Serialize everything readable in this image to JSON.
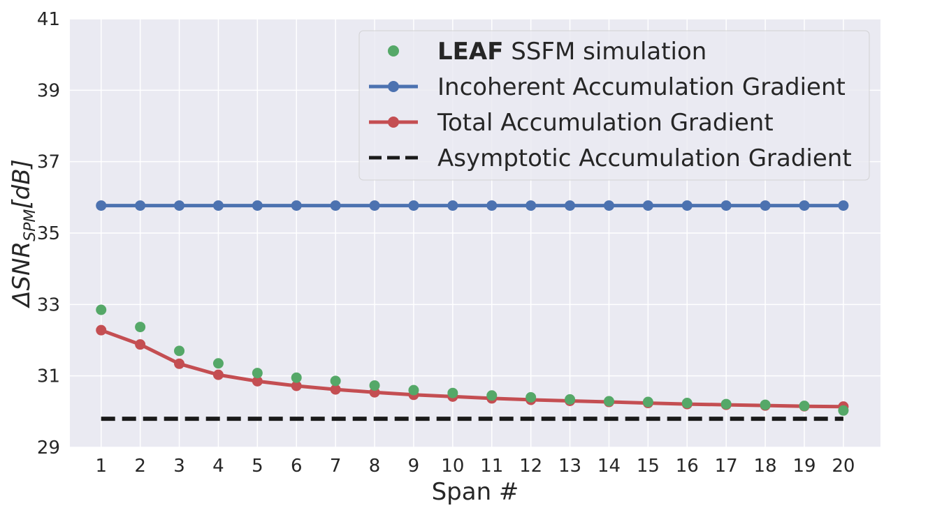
{
  "chart_data": {
    "type": "line",
    "title": "",
    "xlabel": "Span #",
    "ylabel": {
      "prefix": "ΔSNR",
      "subscript": "SPM",
      "suffix": "[dB]"
    },
    "x": [
      1,
      2,
      3,
      4,
      5,
      6,
      7,
      8,
      9,
      10,
      11,
      12,
      13,
      14,
      15,
      16,
      17,
      18,
      19,
      20
    ],
    "xlim": [
      0.2,
      20.95
    ],
    "ylim": [
      29,
      41
    ],
    "yticks": [
      29,
      31,
      33,
      35,
      37,
      39,
      41
    ],
    "grid": true,
    "legend_position": "top-right",
    "colors": {
      "background": "#EAEAF2",
      "grid": "#FFFFFF",
      "green": "#55A868",
      "blue": "#4C72B0",
      "red": "#C44E52",
      "black": "#1A1A1A"
    },
    "series": [
      {
        "name": "SSFM simulation",
        "name_bold": "LEAF",
        "style": "markers",
        "color": "#55A868",
        "values": [
          32.85,
          32.37,
          31.7,
          31.35,
          31.08,
          30.95,
          30.86,
          30.73,
          30.6,
          30.52,
          30.45,
          30.4,
          30.34,
          30.29,
          30.27,
          30.24,
          30.21,
          30.19,
          30.16,
          30.03
        ]
      },
      {
        "name": "Incoherent Accumulation Gradient",
        "style": "line+markers",
        "color": "#4C72B0",
        "values": [
          35.77,
          35.77,
          35.77,
          35.77,
          35.77,
          35.77,
          35.77,
          35.77,
          35.77,
          35.77,
          35.77,
          35.77,
          35.77,
          35.77,
          35.77,
          35.77,
          35.77,
          35.77,
          35.77,
          35.77
        ]
      },
      {
        "name": "Total Accumulation Gradient",
        "style": "line+markers",
        "color": "#C44E52",
        "values": [
          32.28,
          31.88,
          31.34,
          31.03,
          30.85,
          30.72,
          30.62,
          30.54,
          30.47,
          30.42,
          30.37,
          30.33,
          30.3,
          30.27,
          30.24,
          30.21,
          30.19,
          30.17,
          30.15,
          30.14
        ]
      },
      {
        "name": "Asymptotic Accumulation Gradient",
        "style": "dashed",
        "color": "#1A1A1A",
        "values": [
          29.8,
          29.8,
          29.8,
          29.8,
          29.8,
          29.8,
          29.8,
          29.8,
          29.8,
          29.8,
          29.8,
          29.8,
          29.8,
          29.8,
          29.8,
          29.8,
          29.8,
          29.8,
          29.8,
          29.8
        ]
      }
    ]
  }
}
